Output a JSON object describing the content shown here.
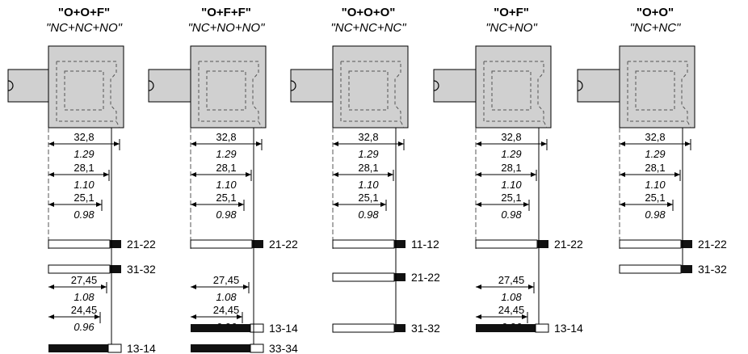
{
  "diagrams": [
    {
      "title": "\"O+O+F\"",
      "subtitle": "\"NC+NC+NO\"",
      "dims": [
        {
          "value": "32,8",
          "inch": "1.29"
        },
        {
          "value": "28,1",
          "inch": "1.10"
        },
        {
          "value": "25,1",
          "inch": "0.98"
        },
        {
          "value": "27,45",
          "inch": "1.08"
        },
        {
          "value": "24,45",
          "inch": "0.96"
        }
      ],
      "contacts": [
        {
          "label": "21-22",
          "type": "NC"
        },
        {
          "label": "31-32",
          "type": "NC"
        },
        {
          "label": "13-14",
          "type": "NO"
        }
      ]
    },
    {
      "title": "\"O+F+F\"",
      "subtitle": "\"NC+NO+NO\"",
      "dims": [
        {
          "value": "32,8",
          "inch": "1.29"
        },
        {
          "value": "28,1",
          "inch": "1.10"
        },
        {
          "value": "25,1",
          "inch": "0.98"
        },
        {
          "value": "27,45",
          "inch": "1.08"
        },
        {
          "value": "24,45",
          "inch": "0.96"
        }
      ],
      "contacts": [
        {
          "label": "21-22",
          "type": "NC"
        },
        {
          "label": "13-14",
          "type": "NO"
        },
        {
          "label": "33-34",
          "type": "NO"
        }
      ]
    },
    {
      "title": "\"O+O+O\"",
      "subtitle": "\"NC+NC+NC\"",
      "dims": [
        {
          "value": "32,8",
          "inch": "1.29"
        },
        {
          "value": "28,1",
          "inch": "1.10"
        },
        {
          "value": "25,1",
          "inch": "0.98"
        }
      ],
      "contacts": [
        {
          "label": "11-12",
          "type": "NC"
        },
        {
          "label": "21-22",
          "type": "NC"
        },
        {
          "label": "31-32",
          "type": "NC"
        }
      ]
    },
    {
      "title": "\"O+F\"",
      "subtitle": "\"NC+NO\"",
      "dims": [
        {
          "value": "32,8",
          "inch": "1.29"
        },
        {
          "value": "28,1",
          "inch": "1.10"
        },
        {
          "value": "25,1",
          "inch": "0.98"
        },
        {
          "value": "27,45",
          "inch": "1.08"
        },
        {
          "value": "24,45",
          "inch": "0.96"
        }
      ],
      "contacts": [
        {
          "label": "21-22",
          "type": "NC"
        },
        {
          "label": "13-14",
          "type": "NO"
        }
      ]
    },
    {
      "title": "\"O+O\"",
      "subtitle": "\"NC+NC\"",
      "dims": [
        {
          "value": "32,8",
          "inch": "1.29"
        },
        {
          "value": "28,1",
          "inch": "1.10"
        },
        {
          "value": "25,1",
          "inch": "0.98"
        }
      ],
      "contacts": [
        {
          "label": "21-22",
          "type": "NC"
        },
        {
          "label": "31-32",
          "type": "NC"
        }
      ]
    }
  ]
}
